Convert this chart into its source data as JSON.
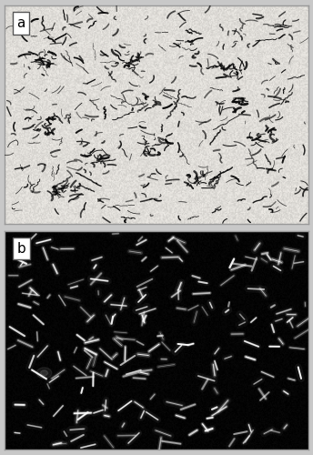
{
  "fig_width": 3.44,
  "fig_height": 5.0,
  "dpi": 100,
  "panel_a_label": "a",
  "panel_b_label": "b",
  "label_fontsize": 11,
  "label_bg_color": "#ffffff",
  "label_text_color": "#000000",
  "panel_a_bg": "#e8e4de",
  "panel_b_bg": "#080808",
  "seed_a": 42,
  "seed_b": 77,
  "n_bacteria_a": 320,
  "n_bacteria_b": 220,
  "bacteria_color_a": "#0a0a0a",
  "bacteria_glow_b": "#ffffff",
  "border_color": "#999999",
  "border_lw": 1.0,
  "hspace": 0.03,
  "fig_bg": "#c8c8c8"
}
